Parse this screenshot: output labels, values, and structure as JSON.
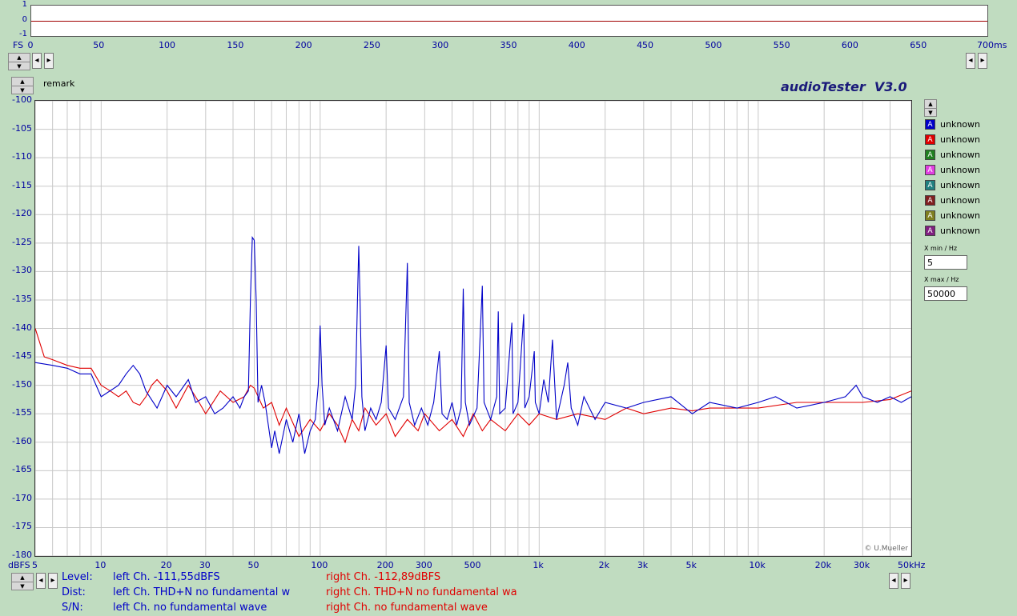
{
  "scope": {
    "y_ticks": [
      "1",
      "0",
      "-1"
    ],
    "fs_label": "FS",
    "x_ticks": [
      "0",
      "50",
      "100",
      "150",
      "200",
      "250",
      "300",
      "350",
      "400",
      "450",
      "500",
      "550",
      "600",
      "650",
      "700ms"
    ]
  },
  "spectrum": {
    "remark_label": "remark",
    "title": "audioTester  V3.0",
    "y_unit": "dBFS",
    "credit": "© U.Mueller",
    "colors": {
      "left": "#0000c8",
      "right": "#e00000",
      "grid": "#c8c8c8",
      "title": "#1a1a7a"
    }
  },
  "chart_data": {
    "type": "line",
    "x_scale": "log",
    "xlim": [
      5,
      50000
    ],
    "ylim": [
      -180,
      -100
    ],
    "y_ticks": [
      -100,
      -105,
      -110,
      -115,
      -120,
      -125,
      -130,
      -135,
      -140,
      -145,
      -150,
      -155,
      -160,
      -165,
      -170,
      -175,
      -180
    ],
    "x_ticks": [
      {
        "v": 5,
        "label": "5"
      },
      {
        "v": 10,
        "label": "10"
      },
      {
        "v": 20,
        "label": "20"
      },
      {
        "v": 30,
        "label": "30"
      },
      {
        "v": 50,
        "label": "50"
      },
      {
        "v": 100,
        "label": "100"
      },
      {
        "v": 200,
        "label": "200"
      },
      {
        "v": 300,
        "label": "300"
      },
      {
        "v": 500,
        "label": "500"
      },
      {
        "v": 1000,
        "label": "1k"
      },
      {
        "v": 2000,
        "label": "2k"
      },
      {
        "v": 3000,
        "label": "3k"
      },
      {
        "v": 5000,
        "label": "5k"
      },
      {
        "v": 10000,
        "label": "10k"
      },
      {
        "v": 20000,
        "label": "20k"
      },
      {
        "v": 30000,
        "label": "30k"
      },
      {
        "v": 50000,
        "label": "50kHz"
      }
    ],
    "grid": true,
    "series": [
      {
        "color": "#0000c8",
        "points": [
          [
            5,
            -146
          ],
          [
            6,
            -146.5
          ],
          [
            7,
            -147
          ],
          [
            8,
            -148
          ],
          [
            9,
            -148
          ],
          [
            10,
            -152
          ],
          [
            12,
            -150
          ],
          [
            13,
            -148
          ],
          [
            14,
            -146.5
          ],
          [
            15,
            -148
          ],
          [
            16,
            -151
          ],
          [
            18,
            -154
          ],
          [
            20,
            -150
          ],
          [
            22,
            -152
          ],
          [
            25,
            -149
          ],
          [
            27,
            -153
          ],
          [
            30,
            -152
          ],
          [
            33,
            -155
          ],
          [
            36,
            -154
          ],
          [
            40,
            -152
          ],
          [
            43,
            -154
          ],
          [
            45,
            -152
          ],
          [
            47,
            -151
          ],
          [
            48,
            -135
          ],
          [
            49,
            -124
          ],
          [
            50,
            -124.5
          ],
          [
            51,
            -135
          ],
          [
            52,
            -153
          ],
          [
            54,
            -150
          ],
          [
            56,
            -153
          ],
          [
            58,
            -157
          ],
          [
            60,
            -161
          ],
          [
            62,
            -158
          ],
          [
            65,
            -162
          ],
          [
            70,
            -156
          ],
          [
            75,
            -160
          ],
          [
            80,
            -155
          ],
          [
            85,
            -162
          ],
          [
            90,
            -158
          ],
          [
            95,
            -156
          ],
          [
            98,
            -150
          ],
          [
            100,
            -139.5
          ],
          [
            102,
            -150
          ],
          [
            105,
            -157
          ],
          [
            110,
            -154
          ],
          [
            120,
            -158
          ],
          [
            130,
            -152
          ],
          [
            140,
            -156
          ],
          [
            145,
            -150
          ],
          [
            148,
            -135
          ],
          [
            150,
            -125.5
          ],
          [
            152,
            -135
          ],
          [
            155,
            -152
          ],
          [
            160,
            -158
          ],
          [
            170,
            -154
          ],
          [
            180,
            -156
          ],
          [
            190,
            -153
          ],
          [
            200,
            -143
          ],
          [
            205,
            -154
          ],
          [
            220,
            -156
          ],
          [
            240,
            -152
          ],
          [
            250,
            -128.5
          ],
          [
            255,
            -153
          ],
          [
            270,
            -157
          ],
          [
            290,
            -154
          ],
          [
            310,
            -157
          ],
          [
            330,
            -153
          ],
          [
            350,
            -144
          ],
          [
            360,
            -155
          ],
          [
            380,
            -156
          ],
          [
            400,
            -153
          ],
          [
            420,
            -157
          ],
          [
            440,
            -154
          ],
          [
            450,
            -133
          ],
          [
            460,
            -153
          ],
          [
            480,
            -157
          ],
          [
            520,
            -154
          ],
          [
            550,
            -132.5
          ],
          [
            560,
            -153
          ],
          [
            600,
            -156
          ],
          [
            640,
            -152
          ],
          [
            650,
            -137
          ],
          [
            660,
            -155
          ],
          [
            700,
            -154
          ],
          [
            750,
            -139
          ],
          [
            760,
            -155
          ],
          [
            800,
            -153
          ],
          [
            850,
            -137.5
          ],
          [
            860,
            -154
          ],
          [
            900,
            -152
          ],
          [
            950,
            -144
          ],
          [
            960,
            -153
          ],
          [
            1000,
            -155
          ],
          [
            1050,
            -149
          ],
          [
            1100,
            -153
          ],
          [
            1150,
            -142
          ],
          [
            1200,
            -156
          ],
          [
            1300,
            -150
          ],
          [
            1350,
            -146
          ],
          [
            1400,
            -154
          ],
          [
            1500,
            -157
          ],
          [
            1600,
            -152
          ],
          [
            1800,
            -156
          ],
          [
            2000,
            -153
          ],
          [
            2500,
            -154
          ],
          [
            3000,
            -153
          ],
          [
            4000,
            -152
          ],
          [
            5000,
            -155
          ],
          [
            6000,
            -153
          ],
          [
            8000,
            -154
          ],
          [
            10000,
            -153
          ],
          [
            12000,
            -152
          ],
          [
            15000,
            -154
          ],
          [
            20000,
            -153
          ],
          [
            25000,
            -152
          ],
          [
            28000,
            -150
          ],
          [
            30000,
            -152
          ],
          [
            35000,
            -153
          ],
          [
            40000,
            -152
          ],
          [
            45000,
            -153
          ],
          [
            50000,
            -152
          ]
        ]
      },
      {
        "color": "#e00000",
        "points": [
          [
            5,
            -140
          ],
          [
            5.5,
            -145
          ],
          [
            6,
            -145.5
          ],
          [
            7,
            -146.5
          ],
          [
            8,
            -147
          ],
          [
            9,
            -147
          ],
          [
            10,
            -150
          ],
          [
            11,
            -151
          ],
          [
            12,
            -152
          ],
          [
            13,
            -151
          ],
          [
            14,
            -153
          ],
          [
            15,
            -153.5
          ],
          [
            16,
            -152
          ],
          [
            17,
            -150
          ],
          [
            18,
            -149
          ],
          [
            20,
            -151
          ],
          [
            22,
            -154
          ],
          [
            25,
            -150
          ],
          [
            28,
            -153
          ],
          [
            30,
            -155
          ],
          [
            35,
            -151
          ],
          [
            40,
            -153
          ],
          [
            45,
            -152
          ],
          [
            48,
            -150
          ],
          [
            50,
            -150.5
          ],
          [
            55,
            -154
          ],
          [
            60,
            -153
          ],
          [
            65,
            -157
          ],
          [
            70,
            -154
          ],
          [
            80,
            -159
          ],
          [
            90,
            -156
          ],
          [
            100,
            -158
          ],
          [
            110,
            -155
          ],
          [
            120,
            -157
          ],
          [
            130,
            -160
          ],
          [
            140,
            -156
          ],
          [
            150,
            -158
          ],
          [
            160,
            -154
          ],
          [
            180,
            -157
          ],
          [
            200,
            -155
          ],
          [
            220,
            -159
          ],
          [
            250,
            -156
          ],
          [
            280,
            -158
          ],
          [
            300,
            -155
          ],
          [
            350,
            -158
          ],
          [
            400,
            -156
          ],
          [
            450,
            -159
          ],
          [
            500,
            -155
          ],
          [
            550,
            -158
          ],
          [
            600,
            -156
          ],
          [
            700,
            -158
          ],
          [
            800,
            -155
          ],
          [
            900,
            -157
          ],
          [
            1000,
            -155
          ],
          [
            1200,
            -156
          ],
          [
            1500,
            -155
          ],
          [
            2000,
            -156
          ],
          [
            2500,
            -154
          ],
          [
            3000,
            -155
          ],
          [
            4000,
            -154
          ],
          [
            5000,
            -154.5
          ],
          [
            6000,
            -154
          ],
          [
            8000,
            -154
          ],
          [
            10000,
            -154
          ],
          [
            15000,
            -153
          ],
          [
            20000,
            -153
          ],
          [
            30000,
            -153
          ],
          [
            40000,
            -152.5
          ],
          [
            50000,
            -151
          ]
        ]
      }
    ]
  },
  "legend": {
    "items": [
      {
        "letter": "A",
        "label": "unknown",
        "color": "#0000c8"
      },
      {
        "letter": "A",
        "label": "unknown",
        "color": "#e00000"
      },
      {
        "letter": "A",
        "label": "unknown",
        "color": "#208020"
      },
      {
        "letter": "A",
        "label": "unknown",
        "color": "#e040e0"
      },
      {
        "letter": "A",
        "label": "unknown",
        "color": "#208080"
      },
      {
        "letter": "A",
        "label": "unknown",
        "color": "#802020"
      },
      {
        "letter": "A",
        "label": "unknown",
        "color": "#808020"
      },
      {
        "letter": "A",
        "label": "unknown",
        "color": "#802080"
      }
    ],
    "x_min_label": "X min / Hz",
    "x_min_value": "5",
    "x_max_label": "X max / Hz",
    "x_max_value": "50000"
  },
  "status": {
    "level_label": "Level:",
    "dist_label": "Dist:",
    "sn_label": "S/N:",
    "level_left": "left Ch. -111,55dBFS",
    "level_right": "right Ch. -112,89dBFS",
    "dist_left": "left Ch. THD+N  no fundamental w",
    "dist_right": "right Ch. THD+N  no fundamental wa",
    "sn_left": "left Ch.  no fundamental wave",
    "sn_right": "right Ch.  no fundamental wave"
  },
  "icons": {
    "arrow_up": "▲",
    "arrow_down": "▼",
    "arrow_left": "◂",
    "arrow_right": "▸"
  }
}
